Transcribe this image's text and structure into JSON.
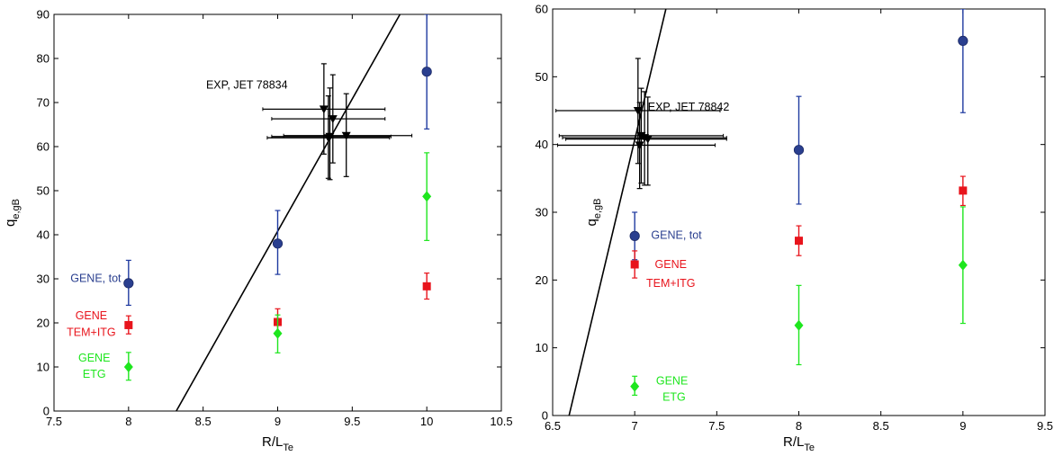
{
  "chart_data": [
    {
      "type": "scatter",
      "xlabel": "R/L",
      "xlabel_sub": "Te",
      "ylabel": "q",
      "ylabel_sub": "e,gB",
      "xlim": [
        7.5,
        10.5
      ],
      "ylim": [
        0,
        90
      ],
      "xticks": [
        "7.5",
        "8",
        "8.5",
        "9",
        "9.5",
        "10",
        "10.5"
      ],
      "yticks": [
        "0",
        "10",
        "20",
        "30",
        "40",
        "50",
        "60",
        "70",
        "80",
        "90"
      ],
      "xtick_values": [
        7.5,
        8,
        8.5,
        9,
        9.5,
        10,
        10.5
      ],
      "ytick_values": [
        0,
        10,
        20,
        30,
        40,
        50,
        60,
        70,
        80,
        90
      ],
      "grid": false,
      "fit_line": {
        "x": [
          8.32,
          9.82
        ],
        "y": [
          0,
          90
        ]
      },
      "series": [
        {
          "key": "tot",
          "marker": "circle",
          "color": "#2a3f8f",
          "errcolor": "#1f3aa0",
          "x": [
            8,
            9,
            10
          ],
          "y": [
            29,
            38,
            77
          ],
          "yerr_low": [
            24,
            31,
            64
          ],
          "yerr_high": [
            34.2,
            45.5,
            90
          ]
        },
        {
          "key": "tem",
          "marker": "square",
          "color": "#e8141c",
          "errcolor": "#e8141c",
          "x": [
            8,
            9,
            10
          ],
          "y": [
            19.5,
            20.2,
            28.3
          ],
          "yerr_low": [
            17.5,
            17.3,
            25.4
          ],
          "yerr_high": [
            21.6,
            23.2,
            31.3
          ]
        },
        {
          "key": "etg",
          "marker": "diamond",
          "color": "#1ee61e",
          "errcolor": "#1ee61e",
          "x": [
            8,
            9,
            10
          ],
          "y": [
            10,
            17.6,
            48.7
          ],
          "yerr_low": [
            7,
            13.2,
            38.7
          ],
          "yerr_high": [
            13.3,
            21.8,
            58.6
          ]
        },
        {
          "key": "exp",
          "marker": "triangle-down",
          "color": "#000000",
          "errcolor": "#000000",
          "points": [
            {
              "x": 9.31,
              "y": 68.5,
              "xlo": 8.9,
              "xhi": 9.72,
              "ylo": 58.3,
              "yhi": 78.8
            },
            {
              "x": 9.37,
              "y": 66.3,
              "xlo": 8.96,
              "xhi": 9.72,
              "ylo": 56.3,
              "yhi": 76.3
            },
            {
              "x": 9.35,
              "y": 62.3,
              "xlo": 8.96,
              "xhi": 9.76,
              "ylo": 52.5,
              "yhi": 73.3
            },
            {
              "x": 9.46,
              "y": 62.5,
              "xlo": 9.04,
              "xhi": 9.9,
              "ylo": 53.2,
              "yhi": 72.0
            },
            {
              "x": 9.34,
              "y": 62.0,
              "xlo": 8.93,
              "xhi": 9.75,
              "ylo": 52.8,
              "yhi": 71.5
            }
          ]
        }
      ],
      "annotations": [
        {
          "text": "EXP, JET 78834",
          "color": "#000000",
          "x": 8.52,
          "y": 73.2,
          "anchor": "start"
        },
        {
          "text": "GENE, tot",
          "color": "#2a3f8f",
          "x": 7.78,
          "y": 29.3,
          "anchor": "middle"
        },
        {
          "text": "GENE",
          "color": "#e8141c",
          "x": 7.75,
          "y": 20.8,
          "anchor": "middle"
        },
        {
          "text": "TEM+ITG",
          "color": "#e8141c",
          "x": 7.75,
          "y": 17.0,
          "anchor": "middle"
        },
        {
          "text": "GENE",
          "color": "#1ee61e",
          "x": 7.77,
          "y": 11.2,
          "anchor": "middle"
        },
        {
          "text": "ETG",
          "color": "#1ee61e",
          "x": 7.77,
          "y": 7.6,
          "anchor": "middle"
        }
      ]
    },
    {
      "type": "scatter",
      "xlabel": "R/L",
      "xlabel_sub": "Te",
      "ylabel": "q",
      "ylabel_sub": "e,gB",
      "xlim": [
        6.5,
        9.5
      ],
      "ylim": [
        0,
        60
      ],
      "xticks": [
        "6.5",
        "7",
        "7.5",
        "8",
        "8.5",
        "9",
        "9.5"
      ],
      "yticks": [
        "0",
        "10",
        "20",
        "30",
        "40",
        "50",
        "60"
      ],
      "xtick_values": [
        6.5,
        7,
        7.5,
        8,
        8.5,
        9,
        9.5
      ],
      "ytick_values": [
        0,
        10,
        20,
        30,
        40,
        50,
        60
      ],
      "grid": false,
      "fit_line": {
        "x": [
          6.6,
          7.19
        ],
        "y": [
          0,
          60
        ]
      },
      "series": [
        {
          "key": "tot",
          "marker": "circle",
          "color": "#2a3f8f",
          "errcolor": "#1f3aa0",
          "x": [
            7,
            8,
            9
          ],
          "y": [
            26.5,
            39.2,
            55.3
          ],
          "yerr_low": [
            23,
            31.2,
            44.7
          ],
          "yerr_high": [
            30,
            47.1,
            60
          ]
        },
        {
          "key": "tem",
          "marker": "square",
          "color": "#e8141c",
          "errcolor": "#e8141c",
          "x": [
            7,
            8,
            9
          ],
          "y": [
            22.3,
            25.8,
            33.2
          ],
          "yerr_low": [
            20.3,
            23.6,
            31.0
          ],
          "yerr_high": [
            24.3,
            28.0,
            35.3
          ]
        },
        {
          "key": "etg",
          "marker": "diamond",
          "color": "#1ee61e",
          "errcolor": "#1ee61e",
          "x": [
            7,
            8,
            9
          ],
          "y": [
            4.3,
            13.3,
            22.2
          ],
          "yerr_low": [
            3.0,
            7.5,
            13.6
          ],
          "yerr_high": [
            5.8,
            19.2,
            30.8
          ]
        },
        {
          "key": "exp",
          "marker": "triangle-down",
          "color": "#000000",
          "errcolor": "#000000",
          "points": [
            {
              "x": 7.02,
              "y": 45.0,
              "xlo": 6.52,
              "xhi": 7.52,
              "ylo": 37.2,
              "yhi": 52.7
            },
            {
              "x": 7.04,
              "y": 41.3,
              "xlo": 6.54,
              "xhi": 7.54,
              "ylo": 34.3,
              "yhi": 48.3
            },
            {
              "x": 7.06,
              "y": 41.0,
              "xlo": 6.56,
              "xhi": 7.56,
              "ylo": 34.0,
              "yhi": 47.8
            },
            {
              "x": 7.08,
              "y": 40.8,
              "xlo": 6.58,
              "xhi": 7.56,
              "ylo": 34.0,
              "yhi": 47.0
            },
            {
              "x": 7.03,
              "y": 39.9,
              "xlo": 6.53,
              "xhi": 7.49,
              "ylo": 33.5,
              "yhi": 46.2
            }
          ]
        }
      ],
      "annotations": [
        {
          "text": "EXP, JET 78842",
          "color": "#000000",
          "x": 7.08,
          "y": 45.0,
          "anchor": "start"
        },
        {
          "text": "GENE, tot",
          "color": "#2a3f8f",
          "x": 7.1,
          "y": 26.1,
          "anchor": "start"
        },
        {
          "text": "GENE",
          "color": "#e8141c",
          "x": 7.22,
          "y": 21.8,
          "anchor": "middle"
        },
        {
          "text": "TEM+ITG",
          "color": "#e8141c",
          "x": 7.22,
          "y": 19.0,
          "anchor": "middle"
        },
        {
          "text": "GENE",
          "color": "#1ee61e",
          "x": 7.13,
          "y": 4.6,
          "anchor": "start"
        },
        {
          "text": "ETG",
          "color": "#1ee61e",
          "x": 7.24,
          "y": 2.2,
          "anchor": "middle"
        }
      ]
    }
  ]
}
